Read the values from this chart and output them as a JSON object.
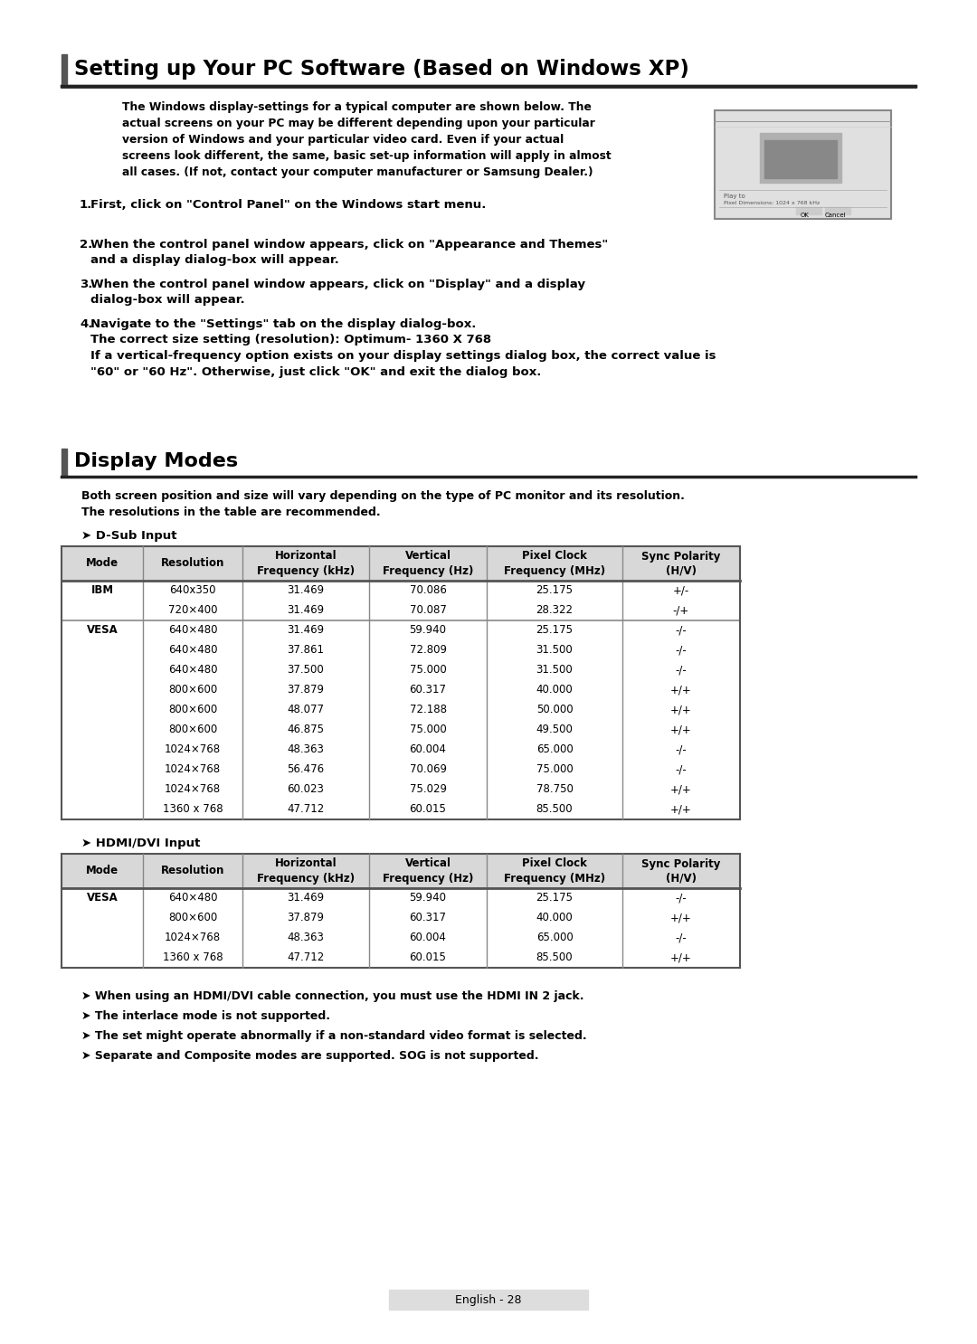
{
  "title1": "Setting up Your PC Software (Based on Windows XP)",
  "intro_text": "The Windows display-settings for a typical computer are shown below. The\nactual screens on your PC may be different depending upon your particular\nversion of Windows and your particular video card. Even if your actual\nscreens look different, the same, basic set-up information will apply in almost\nall cases. (If not, contact your computer manufacturer or Samsung Dealer.)",
  "steps": [
    "First, click on \"Control Panel\" on the Windows start menu.",
    "When the control panel window appears, click on \"Appearance and Themes\"\nand a display dialog-box will appear.",
    "When the control panel window appears, click on \"Display\" and a display\ndialog-box will appear.",
    "Navigate to the \"Settings\" tab on the display dialog-box.\nThe correct size setting (resolution): Optimum- 1360 X 768\nIf a vertical-frequency option exists on your display settings dialog box, the correct value is\n\"60\" or \"60 Hz\". Otherwise, just click \"OK\" and exit the dialog box."
  ],
  "title2": "Display Modes",
  "display_modes_note": "Both screen position and size will vary depending on the type of PC monitor and its resolution.\nThe resolutions in the table are recommended.",
  "dsub_label": "D-Sub Input",
  "hdmi_label": "HDMI/DVI Input",
  "table_headers": [
    "Mode",
    "Resolution",
    "Horizontal\nFrequency (kHz)",
    "Vertical\nFrequency (Hz)",
    "Pixel Clock\nFrequency (MHz)",
    "Sync Polarity\n(H/V)"
  ],
  "dsub_ibm_rows": [
    [
      "IBM",
      "640x350",
      "31.469",
      "70.086",
      "25.175",
      "+/-"
    ],
    [
      "",
      "720×400",
      "31.469",
      "70.087",
      "28.322",
      "-/+"
    ]
  ],
  "dsub_vesa_rows": [
    [
      "VESA",
      "640×480",
      "31.469",
      "59.940",
      "25.175",
      "-/-"
    ],
    [
      "",
      "640×480",
      "37.861",
      "72.809",
      "31.500",
      "-/-"
    ],
    [
      "",
      "640×480",
      "37.500",
      "75.000",
      "31.500",
      "-/-"
    ],
    [
      "",
      "800×600",
      "37.879",
      "60.317",
      "40.000",
      "+/+"
    ],
    [
      "",
      "800×600",
      "48.077",
      "72.188",
      "50.000",
      "+/+"
    ],
    [
      "",
      "800×600",
      "46.875",
      "75.000",
      "49.500",
      "+/+"
    ],
    [
      "",
      "1024×768",
      "48.363",
      "60.004",
      "65.000",
      "-/-"
    ],
    [
      "",
      "1024×768",
      "56.476",
      "70.069",
      "75.000",
      "-/-"
    ],
    [
      "",
      "1024×768",
      "60.023",
      "75.029",
      "78.750",
      "+/+"
    ],
    [
      "",
      "1360 x 768",
      "47.712",
      "60.015",
      "85.500",
      "+/+"
    ]
  ],
  "hdmi_vesa_rows": [
    [
      "VESA",
      "640×480",
      "31.469",
      "59.940",
      "25.175",
      "-/-"
    ],
    [
      "",
      "800×600",
      "37.879",
      "60.317",
      "40.000",
      "+/+"
    ],
    [
      "",
      "1024×768",
      "48.363",
      "60.004",
      "65.000",
      "-/-"
    ],
    [
      "",
      "1360 x 768",
      "47.712",
      "60.015",
      "85.500",
      "+/+"
    ]
  ],
  "notes": [
    "When using an HDMI/DVI cable connection, you must use the HDMI IN 2 jack.",
    "The interlace mode is not supported.",
    "The set might operate abnormally if a non-standard video format is selected.",
    "Separate and Composite modes are supported. SOG is not supported."
  ],
  "page_label": "English - 28",
  "bg_color": "#ffffff",
  "header_bg": "#d0d0d0",
  "border_color": "#555555",
  "text_color": "#000000",
  "title_bar_color": "#555555"
}
